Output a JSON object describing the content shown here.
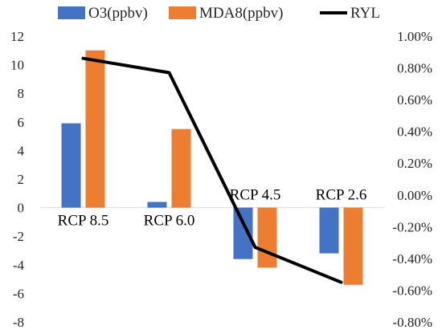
{
  "chart_data": {
    "type": "bar",
    "categories": [
      "RCP 8.5",
      "RCP 6.0",
      "RCP 4.5",
      "RCP 2.6"
    ],
    "series": [
      {
        "name": "O3(ppbv)",
        "type": "bar",
        "axis": "left",
        "color": "#4472C4",
        "values": [
          5.9,
          0.4,
          -3.6,
          -3.2
        ]
      },
      {
        "name": "MDA8(ppbv)",
        "type": "bar",
        "axis": "left",
        "color": "#ED7D31",
        "values": [
          11.0,
          5.5,
          -4.2,
          -5.4
        ]
      },
      {
        "name": "RYL",
        "type": "line",
        "axis": "right",
        "color": "#000000",
        "values": [
          0.0086,
          0.0077,
          -0.0033,
          -0.0055
        ]
      }
    ],
    "y_left": {
      "ylim": [
        -8,
        12
      ],
      "ticks": [
        12,
        10,
        8,
        6,
        4,
        2,
        0,
        -2,
        -4,
        -6,
        -8
      ],
      "tick_labels": [
        "12",
        "10",
        "8",
        "6",
        "4",
        "2",
        "0",
        "-2",
        "-4",
        "-6",
        "-8"
      ]
    },
    "y_right": {
      "ylim": [
        -0.008,
        0.01
      ],
      "ticks": [
        0.01,
        0.008,
        0.006,
        0.004,
        0.002,
        0.0,
        -0.002,
        -0.004,
        -0.006,
        -0.008
      ],
      "tick_labels": [
        "1.00%",
        "0.80%",
        "0.60%",
        "0.40%",
        "0.20%",
        "0.00%",
        "-0.20%",
        "-0.40%",
        "-0.60%",
        "-0.80%"
      ]
    },
    "legend_position": "top",
    "grid": false,
    "category_label_position": "above zero line when bars are negative, below when positive"
  }
}
